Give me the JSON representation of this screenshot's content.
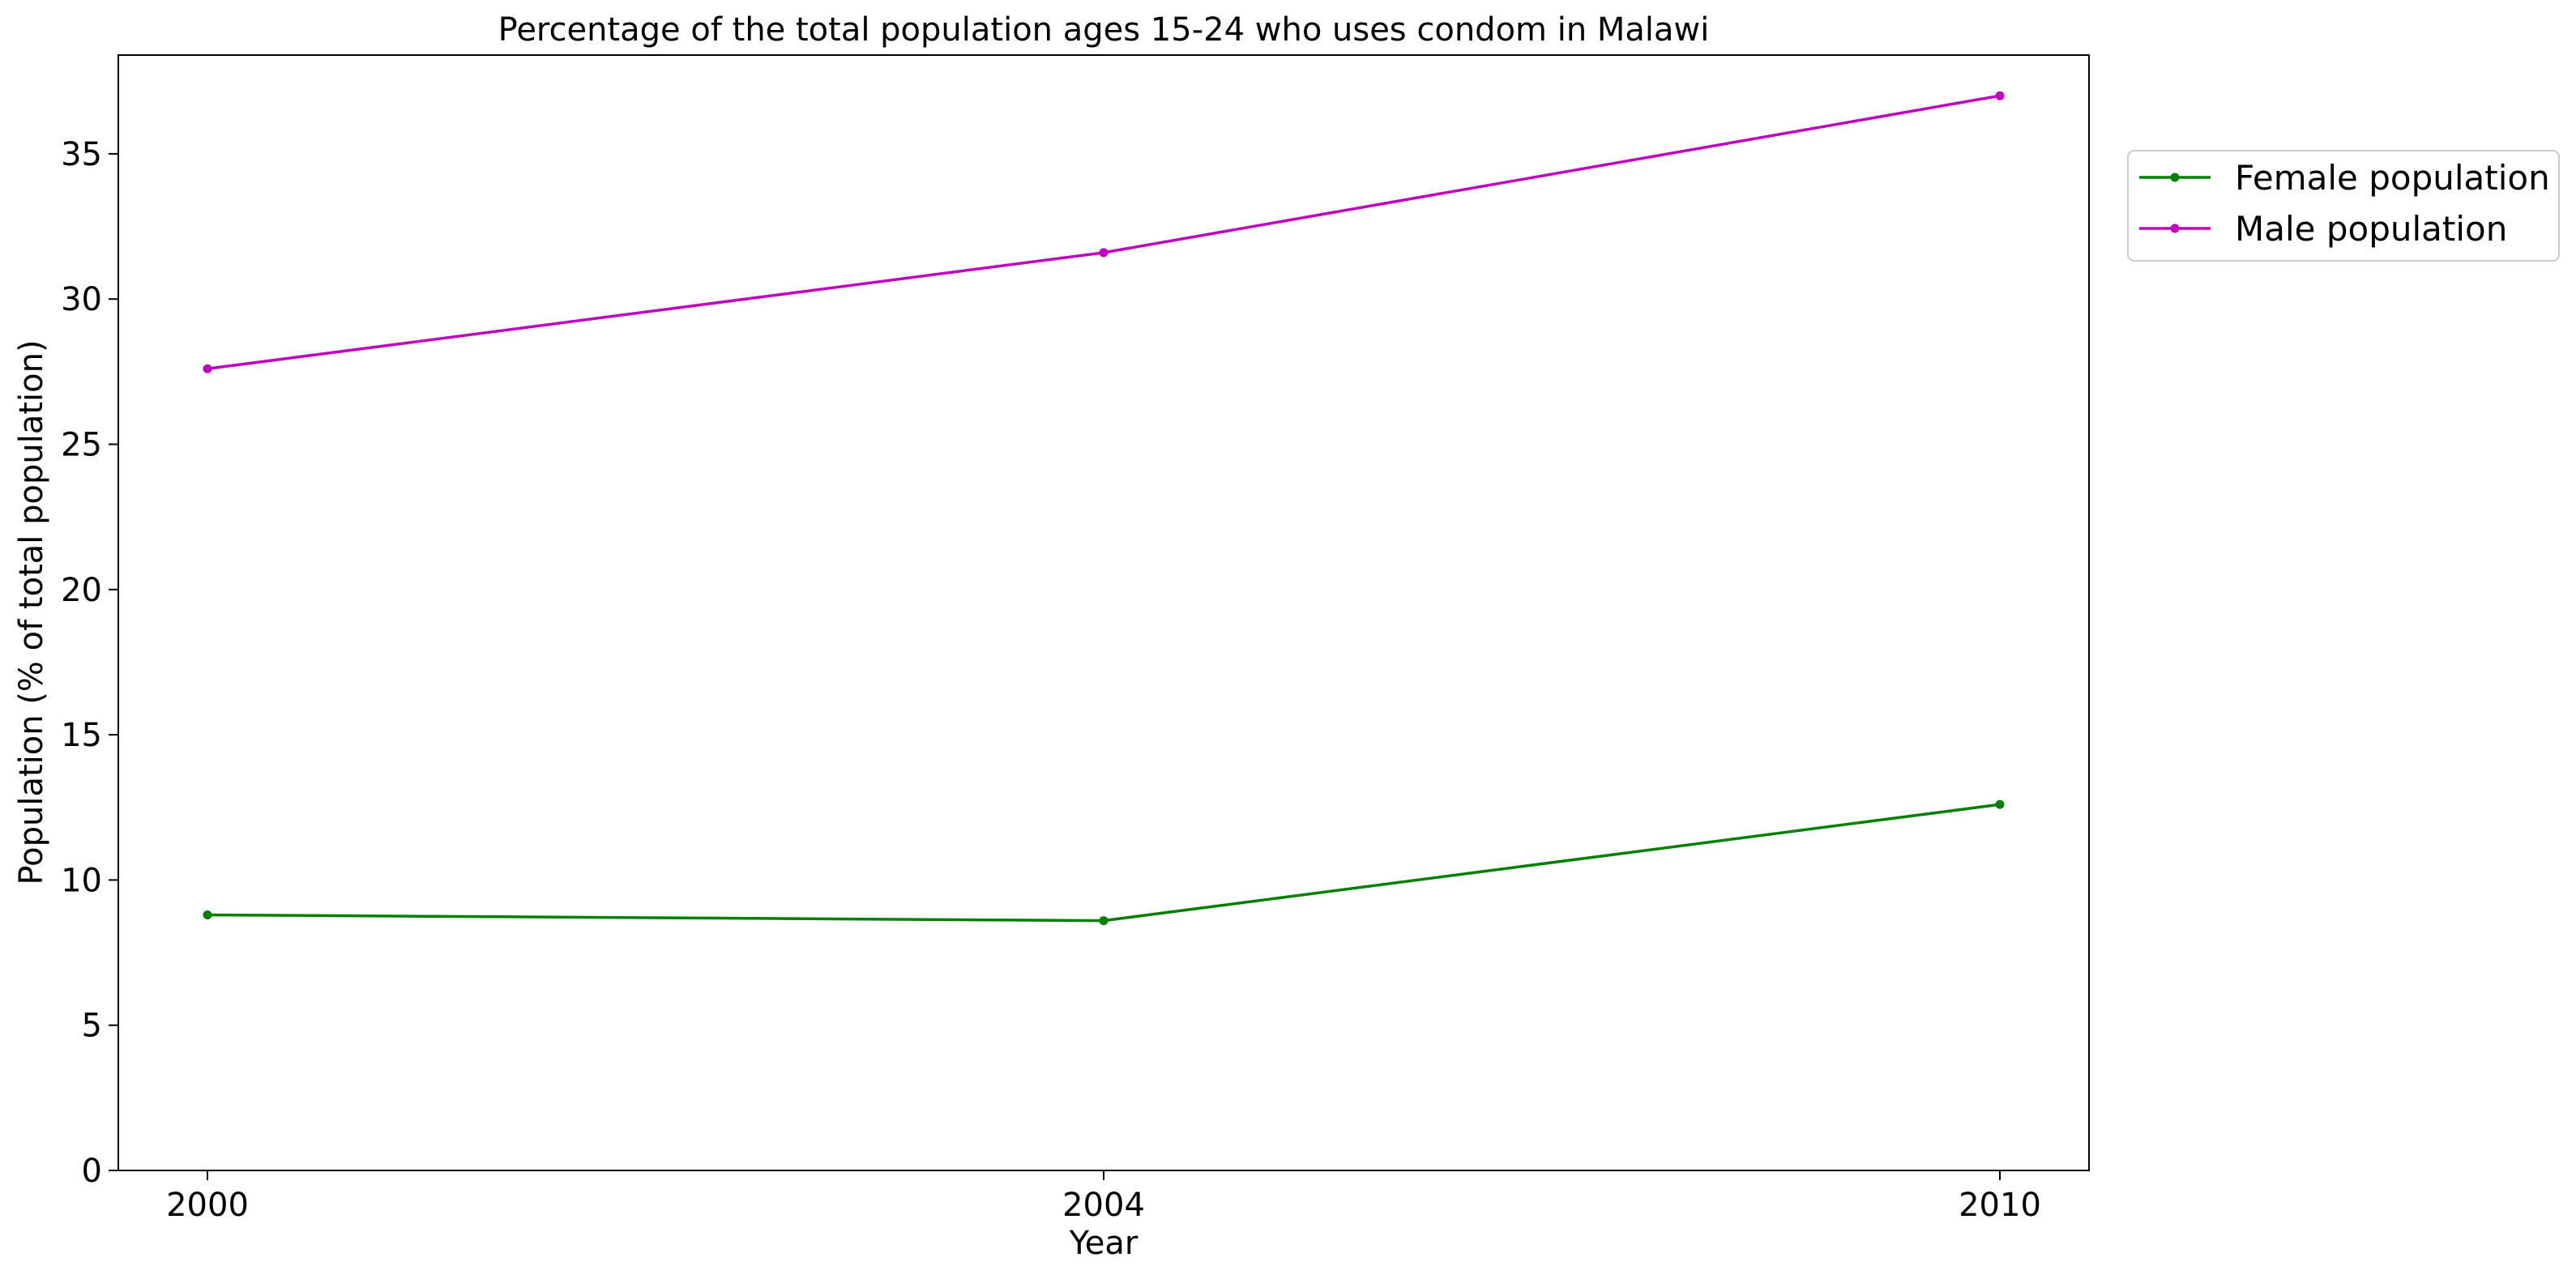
{
  "chart_data": {
    "type": "line",
    "title": "Percentage of the total population ages 15-24 who uses condom in Malawi",
    "xlabel": "Year",
    "ylabel": "Population (% of total population)",
    "categories": [
      "2000",
      "2004",
      "2010"
    ],
    "ylim": [
      0,
      38.4
    ],
    "yticks": [
      0,
      5,
      10,
      15,
      20,
      25,
      30,
      35
    ],
    "grid": false,
    "legend_position": "outside-top-right",
    "series": [
      {
        "name": "Female population",
        "color": "#008000",
        "values": [
          8.8,
          8.6,
          12.6
        ]
      },
      {
        "name": "Male population",
        "color": "#bf00bf",
        "values": [
          27.6,
          31.6,
          37.0
        ]
      }
    ]
  }
}
